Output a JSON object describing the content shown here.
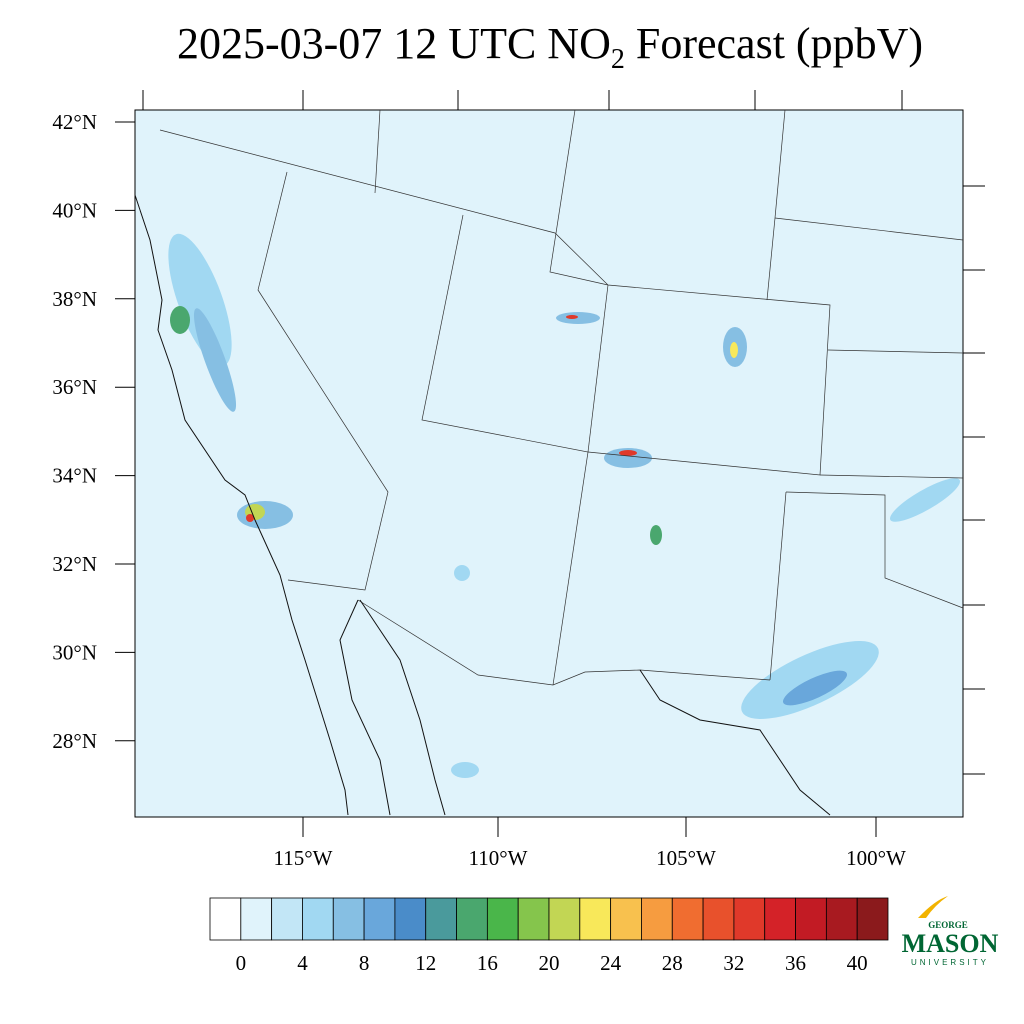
{
  "title": {
    "text": "2025-03-07 12 UTC NO",
    "subscript": "2",
    "suffix": " Forecast (ppbV)"
  },
  "map": {
    "lat_labels": [
      "42°N",
      "40°N",
      "38°N",
      "36°N",
      "34°N",
      "32°N",
      "30°N",
      "28°N"
    ],
    "lon_labels": [
      "115°W",
      "110°W",
      "105°W",
      "100°W"
    ]
  },
  "colorbar": {
    "colors": [
      "#ffffff",
      "#e0f3fb",
      "#c2e6f6",
      "#a1d8f2",
      "#86bfe3",
      "#69a7db",
      "#4a8cc9",
      "#4a9a9c",
      "#4aa76e",
      "#4ab64a",
      "#85c54c",
      "#c2d654",
      "#f8e85a",
      "#f8c14e",
      "#f69c40",
      "#f06d30",
      "#e8512c",
      "#e0392a",
      "#d42228",
      "#c21b24",
      "#a81a20",
      "#8b1a1c"
    ],
    "labels": [
      "0",
      "4",
      "8",
      "12",
      "16",
      "20",
      "24",
      "28",
      "32",
      "36",
      "40"
    ]
  },
  "logo": {
    "top": "GEORGE",
    "main": "MASON",
    "bottom": "UNIVERSITY"
  }
}
